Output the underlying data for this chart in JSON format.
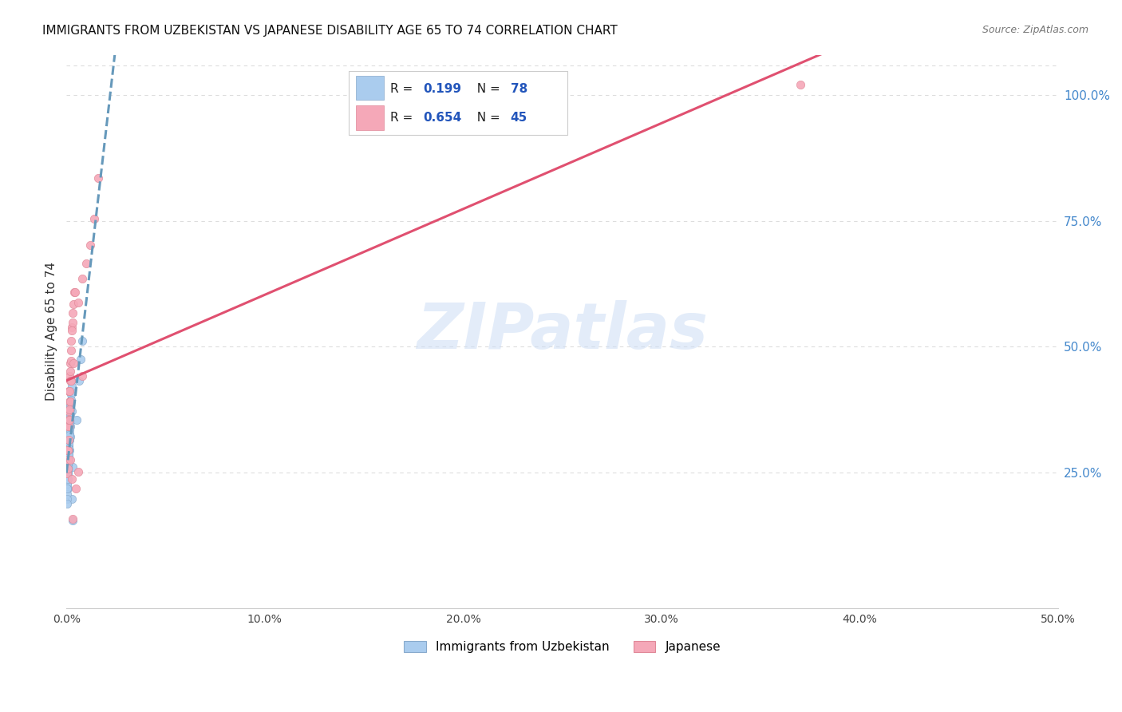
{
  "title": "IMMIGRANTS FROM UZBEKISTAN VS JAPANESE DISABILITY AGE 65 TO 74 CORRELATION CHART",
  "source": "Source: ZipAtlas.com",
  "ylabel": "Disability Age 65 to 74",
  "xlim": [
    0.0,
    0.5
  ],
  "ylim": [
    -0.02,
    1.08
  ],
  "xtick_labels": [
    "0.0%",
    "10.0%",
    "20.0%",
    "30.0%",
    "40.0%",
    "50.0%"
  ],
  "xtick_vals": [
    0.0,
    0.1,
    0.2,
    0.3,
    0.4,
    0.5
  ],
  "ytick_labels": [
    "25.0%",
    "50.0%",
    "75.0%",
    "100.0%"
  ],
  "ytick_vals": [
    0.25,
    0.5,
    0.75,
    1.0
  ],
  "watermark": "ZIPatlas",
  "series": [
    {
      "name": "Immigrants from Uzbekistan",
      "R": 0.199,
      "N": 78,
      "color_scatter": "#aaccee",
      "color_scatter_edge": "#88aacc",
      "color_line": "#6699bb",
      "line_style": "--",
      "x": [
        0.0005,
        0.001,
        0.0008,
        0.0015,
        0.0006,
        0.001,
        0.0012,
        0.0018,
        0.0009,
        0.0004,
        0.002,
        0.0013,
        0.001,
        0.0005,
        0.0016,
        0.0025,
        0.0009,
        0.0012,
        0.0005,
        0.0008,
        0.0017,
        0.0012,
        0.002,
        0.0009,
        0.0004,
        0.0013,
        0.0008,
        0.0016,
        0.0024,
        0.0012,
        0.0028,
        0.0008,
        0.0012,
        0.0004,
        0.0008,
        0.0016,
        0.0012,
        0.002,
        0.0008,
        0.0004,
        0.0032,
        0.0012,
        0.0008,
        0.0016,
        0.0004,
        0.0024,
        0.0012,
        0.0008,
        0.0016,
        0.0004,
        0.002,
        0.0008,
        0.0012,
        0.0024,
        0.0004,
        0.0016,
        0.0008,
        0.0012,
        0.0004,
        0.002,
        0.0028,
        0.0008,
        0.0012,
        0.0016,
        0.0004,
        0.0008,
        0.0024,
        0.0012,
        0.0032,
        0.0016,
        0.002,
        0.0008,
        0.0012,
        0.0004,
        0.0065,
        0.008,
        0.005,
        0.007
      ],
      "y": [
        0.295,
        0.275,
        0.248,
        0.315,
        0.268,
        0.285,
        0.305,
        0.322,
        0.258,
        0.238,
        0.342,
        0.295,
        0.268,
        0.218,
        0.335,
        0.372,
        0.275,
        0.305,
        0.248,
        0.285,
        0.352,
        0.298,
        0.392,
        0.275,
        0.228,
        0.315,
        0.268,
        0.362,
        0.412,
        0.305,
        0.198,
        0.275,
        0.295,
        0.238,
        0.268,
        0.345,
        0.305,
        0.382,
        0.258,
        0.218,
        0.262,
        0.298,
        0.268,
        0.355,
        0.238,
        0.405,
        0.285,
        0.258,
        0.328,
        0.208,
        0.375,
        0.248,
        0.308,
        0.432,
        0.228,
        0.338,
        0.268,
        0.295,
        0.218,
        0.365,
        0.422,
        0.258,
        0.315,
        0.345,
        0.198,
        0.275,
        0.395,
        0.285,
        0.155,
        0.325,
        0.385,
        0.238,
        0.298,
        0.188,
        0.432,
        0.512,
        0.355,
        0.475
      ]
    },
    {
      "name": "Japanese",
      "R": 0.654,
      "N": 45,
      "color_scatter": "#f5a8b8",
      "color_scatter_edge": "#e08898",
      "color_line": "#e05070",
      "line_style": "-",
      "x": [
        0.0005,
        0.0012,
        0.0008,
        0.0016,
        0.002,
        0.0012,
        0.0024,
        0.0008,
        0.0016,
        0.0004,
        0.0028,
        0.0012,
        0.002,
        0.0008,
        0.0032,
        0.0016,
        0.0024,
        0.0012,
        0.002,
        0.0008,
        0.0036,
        0.0016,
        0.0028,
        0.0012,
        0.0024,
        0.0016,
        0.0032,
        0.002,
        0.004,
        0.0024,
        0.0048,
        0.0028,
        0.0036,
        0.002,
        0.0044,
        0.006,
        0.008,
        0.01,
        0.012,
        0.014,
        0.016,
        0.008,
        0.0032,
        0.006,
        0.37
      ],
      "y": [
        0.342,
        0.412,
        0.295,
        0.442,
        0.468,
        0.372,
        0.512,
        0.275,
        0.392,
        0.248,
        0.538,
        0.342,
        0.452,
        0.295,
        0.568,
        0.412,
        0.492,
        0.355,
        0.432,
        0.258,
        0.585,
        0.375,
        0.532,
        0.315,
        0.472,
        0.355,
        0.548,
        0.392,
        0.608,
        0.432,
        0.218,
        0.238,
        0.468,
        0.275,
        0.608,
        0.588,
        0.635,
        0.665,
        0.702,
        0.755,
        0.835,
        0.442,
        0.158,
        0.252,
        1.02
      ]
    }
  ]
}
